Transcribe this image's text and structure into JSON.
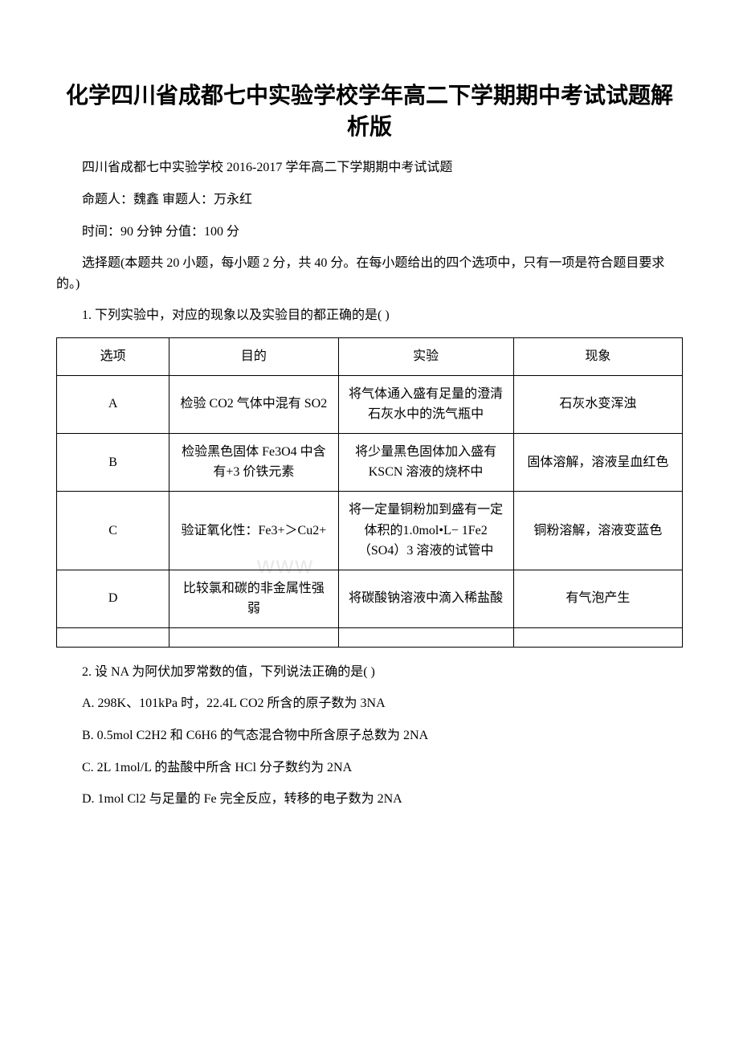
{
  "title": "化学四川省成都七中实验学校学年高二下学期期中考试试题解析版",
  "subtitle": "四川省成都七中实验学校 2016-2017 学年高二下学期期中考试试题",
  "authors": "命题人：魏鑫 审题人：万永红",
  "exam_info": "时间：90 分钟 分值：100 分",
  "section_intro": "选择题(本题共 20 小题，每小题 2 分，共 40 分。在每小题给出的四个选项中，只有一项是符合题目要求的。)",
  "question1": {
    "text": "1. 下列实验中，对应的现象以及实验目的都正确的是( )",
    "table": {
      "headers": [
        "选项",
        "目的",
        "实验",
        "现象"
      ],
      "rows": [
        {
          "option": "A",
          "purpose": "检验 CO2 气体中混有 SO2",
          "experiment": "将气体通入盛有足量的澄清石灰水中的洗气瓶中",
          "phenomenon": "石灰水变浑浊"
        },
        {
          "option": "B",
          "purpose": "检验黑色固体 Fe3O4 中含有+3 价铁元素",
          "experiment": "将少量黑色固体加入盛有KSCN 溶液的烧杯中",
          "phenomenon": "固体溶解，溶液呈血红色"
        },
        {
          "option": "C",
          "purpose": "验证氧化性：Fe3+＞Cu2+",
          "experiment": "将一定量铜粉加到盛有一定体积的1.0mol•L− 1Fe2（SO4）3 溶液的试管中",
          "phenomenon": "铜粉溶解，溶液变蓝色"
        },
        {
          "option": "D",
          "purpose": "比较氯和碳的非金属性强弱",
          "experiment": "将碳酸钠溶液中滴入稀盐酸",
          "phenomenon": "有气泡产生"
        }
      ]
    }
  },
  "question2": {
    "text": "2. 设 NA 为阿伏加罗常数的值，下列说法正确的是( )",
    "options": [
      "A. 298K、101kPa 时，22.4L CO2 所含的原子数为 3NA",
      "B. 0.5mol C2H2 和 C6H6 的气态混合物中所含原子总数为 2NA",
      "C. 2L 1mol/L 的盐酸中所含 HCl 分子数约为 2NA",
      "D. 1mol Cl2 与足量的 Fe 完全反应，转移的电子数为 2NA"
    ]
  },
  "watermark_text": "www",
  "colors": {
    "text": "#000000",
    "background": "#ffffff",
    "border": "#000000",
    "watermark": "#e8e8e8"
  }
}
